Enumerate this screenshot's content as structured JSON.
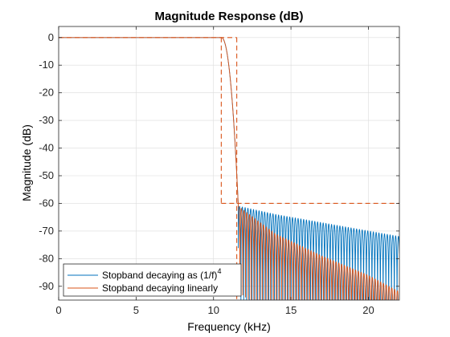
{
  "chart_data": {
    "type": "line",
    "title": "Magnitude Response (dB)",
    "xlabel": "Frequency (kHz)",
    "ylabel": "Magnitude (dB)",
    "xlim": [
      0,
      22
    ],
    "ylim": [
      -95,
      4
    ],
    "x_ticks": [
      "0",
      "5",
      "10",
      "15",
      "20"
    ],
    "y_ticks": [
      "0",
      "-10",
      "-20",
      "-30",
      "-40",
      "-50",
      "-60",
      "-70",
      "-80",
      "-90"
    ],
    "grid": true,
    "legend_position": "bottom-left",
    "passband_edge_khz": 10.5,
    "stopband_edge_khz": 11.5,
    "stopband_attenuation_db": -60,
    "series": [
      {
        "name_text": "Stopband decaying as (1/f)",
        "name_superscript": "4",
        "color": "#0072BD",
        "passband_level_db": 0,
        "stopband_peak_db": [
          [
            11.6,
            -61
          ],
          [
            14,
            -64
          ],
          [
            17,
            -67
          ],
          [
            20,
            -70
          ],
          [
            22,
            -72
          ]
        ],
        "stopband_ripple_period_khz": 0.18
      },
      {
        "name_text": "Stopband decaying linearly",
        "color": "#D95319",
        "passband_level_db": 0,
        "stopband_peak_db": [
          [
            11.6,
            -61
          ],
          [
            14,
            -71
          ],
          [
            17,
            -79
          ],
          [
            20,
            -86
          ],
          [
            22,
            -92
          ]
        ],
        "stopband_ripple_period_khz": 0.18
      }
    ],
    "spec_mask_color": "#D95319"
  }
}
